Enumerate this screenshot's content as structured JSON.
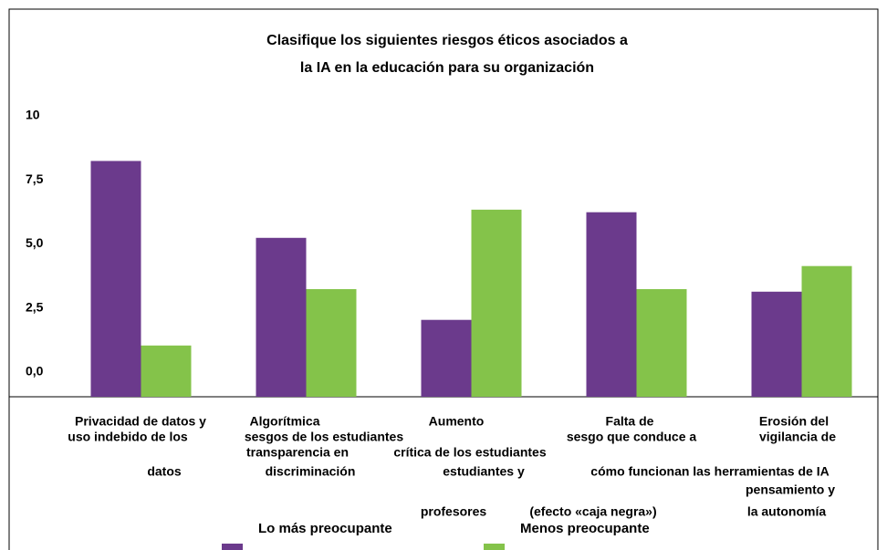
{
  "chart_data": {
    "type": "bar",
    "title": [
      "Clasifique los siguientes riesgos éticos asociados a",
      "la IA en la educación para su organización"
    ],
    "categories": [
      [
        "Privacidad de datos y",
        "uso indebido de los",
        "datos"
      ],
      [
        "Algorítmica",
        "sesgos de los estudiantes",
        "transparencia en",
        "discriminación"
      ],
      [
        "Aumento",
        "crítica de los estudiantes",
        "estudiantes y",
        "profesores"
      ],
      [
        "Falta de",
        "sesgo que conduce a",
        "cómo funcionan las herramientas de IA",
        "(efecto «caja negra»)"
      ],
      [
        "Erosión del",
        "vigilancia de",
        "pensamiento y",
        "la autonomía"
      ]
    ],
    "series": [
      {
        "name": "Lo más preocupante",
        "color": "#6b3a8c",
        "values": [
          9.2,
          6.2,
          3.0,
          7.2,
          4.1
        ]
      },
      {
        "name": "Menos preocupante",
        "color": "#84c34a",
        "values": [
          2.0,
          4.2,
          7.3,
          4.2,
          5.1
        ]
      }
    ],
    "ylim": [
      0,
      10
    ],
    "yticks": [
      {
        "value": 0,
        "label": "0,0"
      },
      {
        "value": 2.5,
        "label": "2,5"
      },
      {
        "value": 5,
        "label": "5,0"
      },
      {
        "value": 7.5,
        "label": "7,5"
      },
      10
    ]
  }
}
